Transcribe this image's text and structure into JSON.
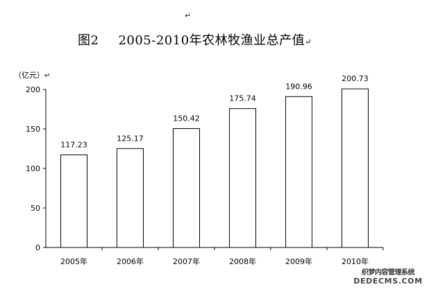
{
  "marks": {
    "return": "↵"
  },
  "title": {
    "figure_label": "图2",
    "text": "2005-2010年农林牧渔业总产值"
  },
  "axis": {
    "unit": "（亿元）"
  },
  "watermark": {
    "line1": "织梦内容管理系统",
    "line2": "DEDECMS.COM"
  },
  "chart_data": {
    "type": "bar",
    "title": "图2 2005-2010年农林牧渔业总产值",
    "ylabel": "（亿元）",
    "xlabel": "",
    "categories": [
      "2005年",
      "2006年",
      "2007年",
      "2008年",
      "2009年",
      "2010年"
    ],
    "values": [
      117.23,
      125.17,
      150.42,
      175.74,
      190.96,
      200.73
    ],
    "value_labels": [
      "117.23",
      "125.17",
      "150.42",
      "175.74",
      "190.96",
      "200.73"
    ],
    "ylim": [
      0,
      200
    ],
    "yticks": [
      0,
      50,
      100,
      150,
      200
    ],
    "grid": false,
    "legend": "none",
    "bar_fill": "#ffffff",
    "bar_stroke": "#000000"
  }
}
